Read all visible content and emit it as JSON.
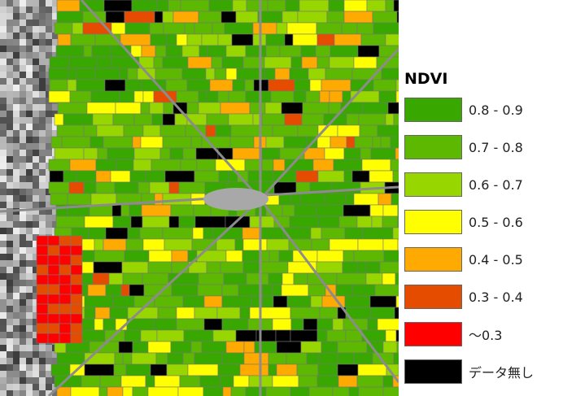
{
  "legend": {
    "title": "NDVI",
    "items": [
      {
        "label": "0.8 - 0.9",
        "color": "#38a800"
      },
      {
        "label": "0.7 - 0.8",
        "color": "#5cb800"
      },
      {
        "label": "0.6 - 0.7",
        "color": "#98d600"
      },
      {
        "label": "0.5 - 0.6",
        "color": "#ffff00"
      },
      {
        "label": "0.4 - 0.5",
        "color": "#ffaa00"
      },
      {
        "label": "0.3 - 0.4",
        "color": "#e64c00"
      },
      {
        "label": "～0.3",
        "color": "#ff0000"
      },
      {
        "label": "データ無し",
        "color": "#000000"
      }
    ]
  }
}
